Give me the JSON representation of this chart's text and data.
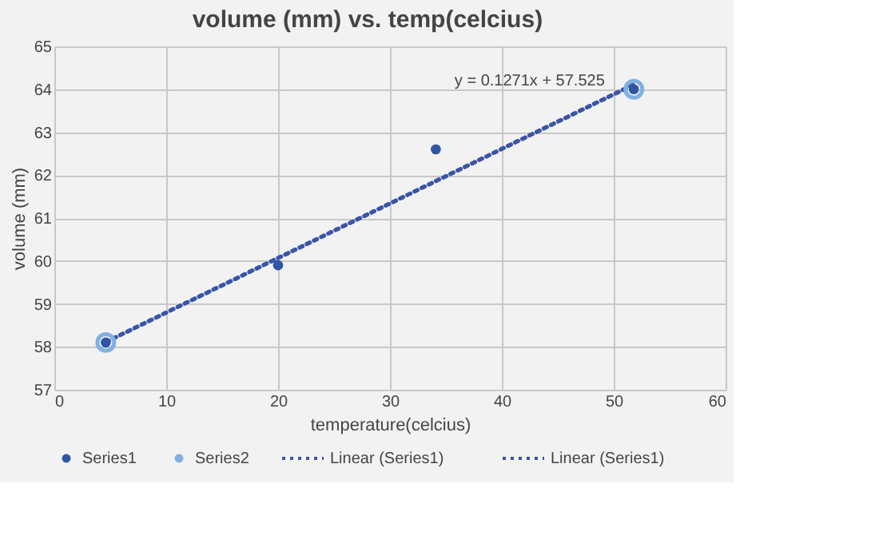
{
  "chart_data": {
    "type": "scatter",
    "title": "volume (mm) vs. temp(celcius)",
    "xlabel": "temperature(celcius)",
    "ylabel": "volume (mm)",
    "xlim": [
      0,
      60
    ],
    "xticks": [
      0,
      10,
      20,
      30,
      40,
      50,
      60
    ],
    "ylim": [
      57,
      65
    ],
    "yticks": [
      57,
      58,
      59,
      60,
      61,
      62,
      63,
      64,
      65
    ],
    "grid": true,
    "legend": "bottom",
    "series": [
      {
        "name": "Series1",
        "marker": "circle",
        "color": "#2f55a4",
        "x": [
          4.6,
          20,
          34.1,
          51.8
        ],
        "values": [
          58.1,
          59.9,
          62.6,
          64.0
        ]
      },
      {
        "name": "Series2",
        "marker": "circle",
        "color": "#7fb0e0",
        "x": [
          4.6,
          51.8
        ],
        "values": [
          58.1,
          64.0
        ]
      },
      {
        "name": "Linear (Series1)",
        "type": "line",
        "line_style": "dotted",
        "color": "#3a55a8",
        "x": [
          4.6,
          51.8
        ],
        "values": [
          58.11,
          64.11
        ]
      },
      {
        "name": "Linear (Series1)",
        "type": "line",
        "line_style": "dotted",
        "color": "#3a55a8",
        "x": [
          4.6,
          51.8
        ],
        "values": [
          58.11,
          64.11
        ]
      }
    ],
    "annotations": [
      "y = 0.1271x + 57.525"
    ]
  }
}
